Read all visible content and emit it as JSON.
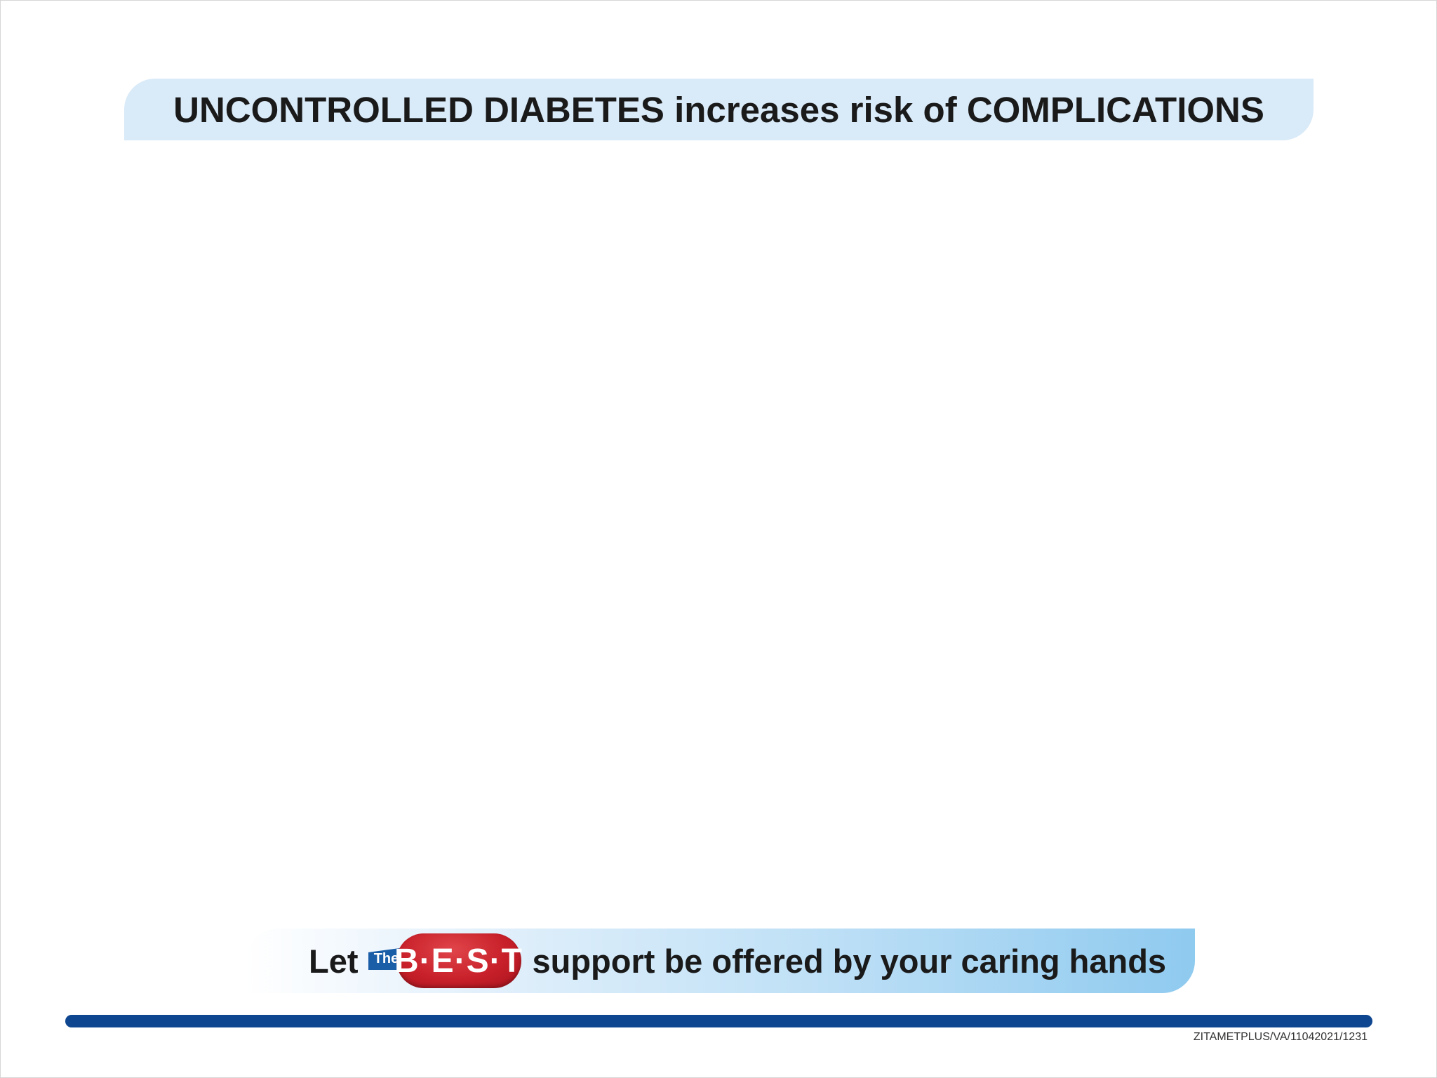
{
  "header": {
    "title": "UNCONTROLLED DIABETES increases risk of COMPLICATIONS"
  },
  "tagline": {
    "prefix": "Let",
    "logo_the": "The",
    "logo_best": "B·E·S·T",
    "suffix": "support be offered by your caring hands"
  },
  "footer": {
    "reference_code": "ZITAMETPLUS/VA/11042021/1231"
  },
  "colors": {
    "title_banner": "#d9eaf8",
    "footer_bar": "#0e4690",
    "logo_red": "#c8202a",
    "logo_blue": "#1a5ea8"
  }
}
